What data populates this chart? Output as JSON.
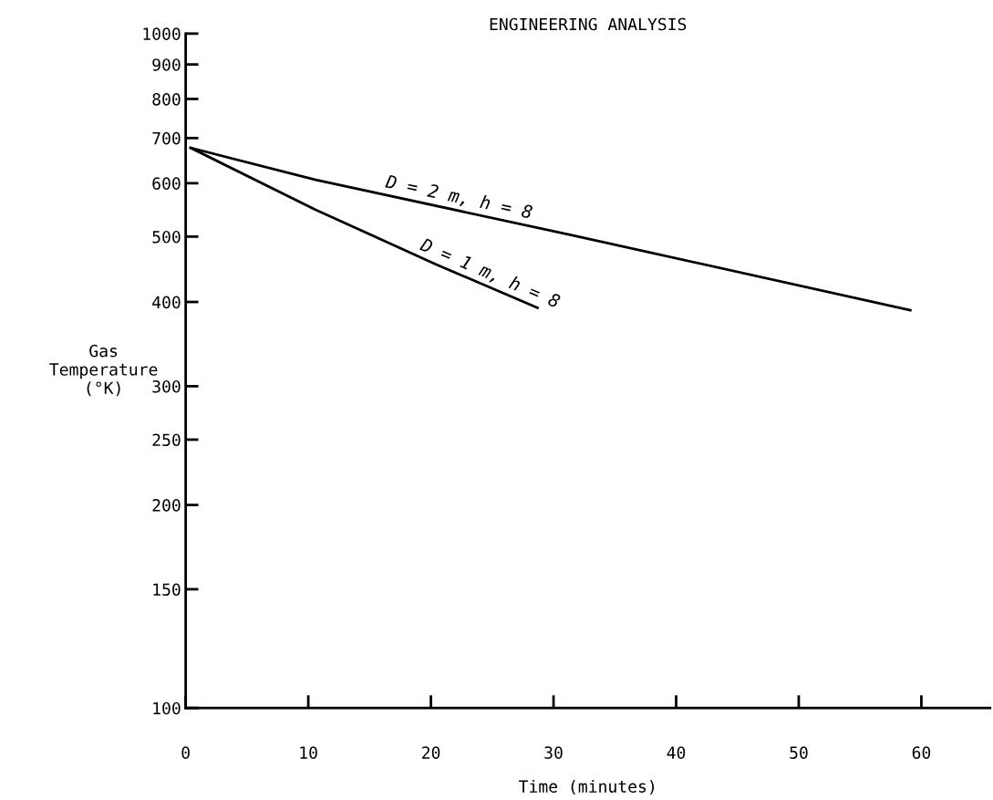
{
  "chart_data": {
    "type": "line",
    "title": "ENGINEERING ANALYSIS",
    "xlabel": "Time (minutes)",
    "ylabel": "Gas\nTemperature\n(°K)",
    "series": [
      {
        "name": "D = 2 m, h = 8",
        "color": "#000000",
        "x": [
          0.4,
          10.6,
          31.6,
          59.1
        ],
        "values": [
          677,
          607,
          502,
          389
        ]
      },
      {
        "name": "D = 1 m, h = 8",
        "color": "#000000",
        "x": [
          0.4,
          10.6,
          20.4,
          28.7
        ],
        "values": [
          677,
          548,
          455,
          392
        ]
      }
    ],
    "log": "y",
    "xlim": [
      0,
      65.6
    ],
    "ylim": [
      100,
      1000
    ],
    "xticks": [
      0,
      10,
      20,
      30,
      40,
      50,
      60
    ],
    "yticks": [
      100,
      150,
      200,
      250,
      300,
      400,
      500,
      600,
      700,
      800,
      900,
      1000
    ],
    "grid": false,
    "legend": false,
    "marker": "none",
    "line_style": "solid"
  }
}
